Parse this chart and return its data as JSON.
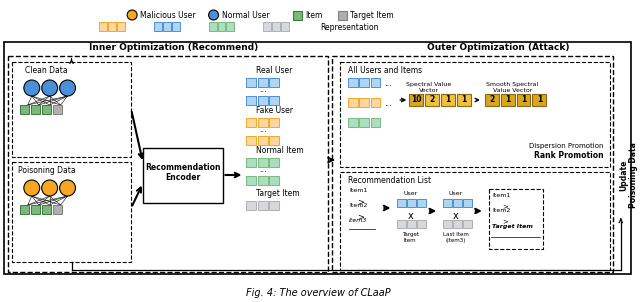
{
  "title": "Fig. 4: The overview of CLaaP",
  "bg_color": "#ffffff",
  "legend_items": [
    {
      "label": "Malicious User",
      "color": "#F5A623",
      "shape": "circle"
    },
    {
      "label": "Normal User",
      "color": "#4A90D9",
      "shape": "circle"
    },
    {
      "label": "Item",
      "color": "#7CB87C",
      "shape": "square"
    },
    {
      "label": "Target Item",
      "color": "#B0B0B0",
      "shape": "square"
    }
  ],
  "inner_title": "Inner Optimization (Recommend)",
  "outer_title": "Outer Optimization (Attack)",
  "update_label": "Update\nPoisoning Data",
  "dispersion_label": "Dispersion Promotion",
  "rank_label": "Rank Promotion",
  "spectral_label": "Spectral Value\nVector",
  "smooth_label": "Smooth Spectral\nValue Vector",
  "all_users_label": "All Users and Items",
  "rec_list_label": "Recommendation List",
  "rec_encoder_label": "Recommendation\nEncoder",
  "clean_data_label": "Clean Data",
  "poisoning_data_label": "Poisoning Data",
  "real_user_label": "Real User",
  "fake_user_label": "Fake User",
  "normal_item_label": "Normal Item",
  "target_item_label": "Target Item",
  "spectral_values": [
    "10",
    "2",
    "1",
    "1"
  ],
  "smooth_values": [
    "2",
    "1",
    "1",
    "1"
  ],
  "orange_color": "#F5A623",
  "blue_color": "#4A90D9",
  "green_color": "#7CB87C",
  "gray_color": "#B0B0B0",
  "light_orange": "#FAD7A0",
  "light_blue": "#AED6F1",
  "light_green": "#A9DFBF",
  "light_gray": "#D5D8DC",
  "gold_color": "#DAA520",
  "gold_light": "#F0C040"
}
